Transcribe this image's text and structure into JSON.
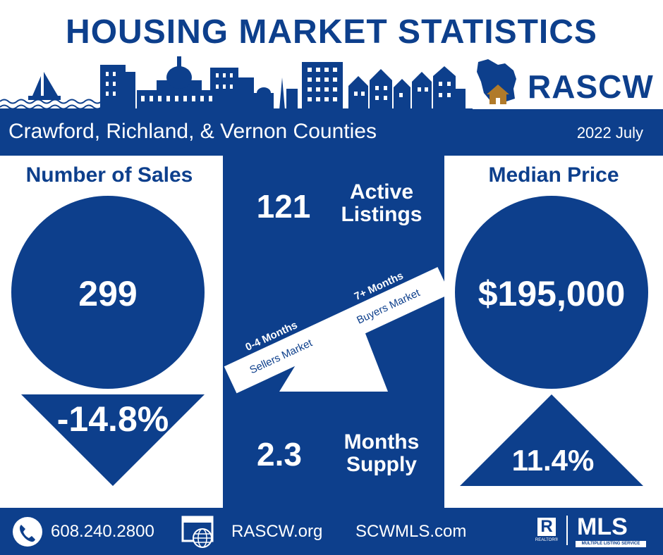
{
  "title": "HOUSING MARKET STATISTICS",
  "brand": {
    "name": "RASCW"
  },
  "region": "Crawford, Richland, & Vernon Counties",
  "period": "2022 July",
  "sales": {
    "label": "Number of Sales",
    "value": "299",
    "change": "-14.8%",
    "direction": "down"
  },
  "listings": {
    "value": "121",
    "label_line1": "Active",
    "label_line2": "Listings"
  },
  "scale": {
    "sellers_range": "0-4 Months",
    "sellers_label": "Sellers Market",
    "buyers_range": "7+ Months",
    "buyers_label": "Buyers Market"
  },
  "supply": {
    "value": "2.3",
    "label_line1": "Months",
    "label_line2": "Supply"
  },
  "price": {
    "label": "Median Price",
    "value": "$195,000",
    "change": "11.4%",
    "direction": "up"
  },
  "footer": {
    "phone": "608.240.2800",
    "site1": "RASCW.org",
    "site2": "SCWMLS.com",
    "realtor_mark": "R",
    "realtor_text": "REALTOR®",
    "mls": "MLS",
    "mls_sub": "MULTIPLE LISTING SERVICE"
  },
  "colors": {
    "primary": "#0d3f8c",
    "accent": "#b07a2a",
    "white": "#ffffff"
  },
  "icons": {
    "skyline": "city-skyline-icon",
    "logo": "wisconsin-house-icon",
    "phone": "phone-icon",
    "web": "web-globe-icon"
  }
}
